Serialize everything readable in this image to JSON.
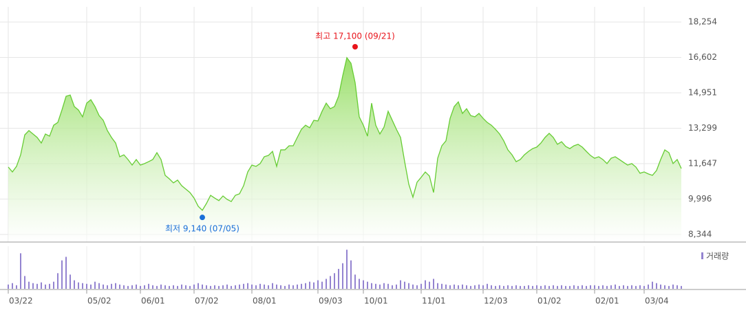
{
  "chart_data": {
    "type": "line",
    "categories": [
      "03/22",
      null,
      null,
      null,
      null,
      null,
      null,
      null,
      null,
      null,
      null,
      null,
      null,
      null,
      null,
      null,
      null,
      null,
      null,
      "05/02",
      null,
      null,
      null,
      null,
      null,
      null,
      null,
      null,
      null,
      null,
      null,
      null,
      "06/01",
      null,
      null,
      null,
      null,
      null,
      null,
      null,
      null,
      null,
      null,
      null,
      null,
      "07/02",
      null,
      null,
      null,
      null,
      null,
      null,
      null,
      null,
      null,
      null,
      null,
      null,
      null,
      "08/01",
      null,
      null,
      null,
      null,
      null,
      null,
      null,
      null,
      null,
      null,
      null,
      null,
      null,
      null,
      null,
      "09/03",
      null,
      null,
      null,
      null,
      null,
      null,
      null,
      null,
      null,
      null,
      "10/01",
      null,
      null,
      null,
      null,
      null,
      null,
      null,
      null,
      null,
      null,
      null,
      null,
      null,
      "11/01",
      null,
      null,
      null,
      null,
      null,
      null,
      null,
      null,
      null,
      null,
      null,
      null,
      null,
      null,
      "12/03",
      null,
      null,
      null,
      null,
      null,
      null,
      null,
      null,
      null,
      null,
      null,
      null,
      "01/02",
      null,
      null,
      null,
      null,
      null,
      null,
      null,
      null,
      null,
      null,
      null,
      null,
      null,
      "02/01",
      null,
      null,
      null,
      null,
      null,
      null,
      null,
      null,
      null,
      null,
      null,
      "03/04",
      null,
      null,
      null,
      null,
      null,
      null,
      null,
      null,
      null
    ],
    "series": [
      {
        "color": "#66cc33",
        "values": [
          11490,
          11260,
          11520,
          12060,
          12990,
          13190,
          13030,
          12870,
          12610,
          13030,
          12930,
          13440,
          13570,
          14150,
          14790,
          14850,
          14310,
          14150,
          13830,
          14470,
          14630,
          14310,
          13890,
          13670,
          13190,
          12870,
          12610,
          11970,
          12060,
          11840,
          11580,
          11840,
          11580,
          11650,
          11740,
          11840,
          12160,
          11840,
          11100,
          10940,
          10750,
          10880,
          10620,
          10460,
          10300,
          10040,
          9660,
          9470,
          9790,
          10170,
          10040,
          9920,
          10140,
          9980,
          9880,
          10170,
          10240,
          10620,
          11260,
          11580,
          11520,
          11650,
          11970,
          12030,
          12220,
          11520,
          12290,
          12290,
          12480,
          12480,
          12870,
          13250,
          13440,
          13320,
          13670,
          13640,
          14090,
          14470,
          14210,
          14310,
          14790,
          15750,
          16590,
          16330,
          15430,
          13830,
          13440,
          12930,
          14470,
          13440,
          13030,
          13350,
          14090,
          13670,
          13250,
          12870,
          11740,
          10690,
          10080,
          10780,
          11010,
          11260,
          11070,
          10300,
          11900,
          12480,
          12710,
          13760,
          14310,
          14530,
          13990,
          14210,
          13890,
          13830,
          13990,
          13760,
          13570,
          13440,
          13250,
          13030,
          12710,
          12290,
          12060,
          11740,
          11840,
          12060,
          12220,
          12350,
          12420,
          12610,
          12870,
          13060,
          12870,
          12550,
          12670,
          12450,
          12350,
          12480,
          12550,
          12420,
          12220,
          12030,
          11900,
          11970,
          11840,
          11650,
          11900,
          11970,
          11840,
          11710,
          11580,
          11650,
          11490,
          11200,
          11260,
          11170,
          11100,
          11330,
          11840,
          12290,
          12160,
          11650,
          11840,
          11420
        ]
      }
    ],
    "volume": {
      "name": "거래량",
      "color": "#9383d0",
      "ylim": [
        0,
        60
      ],
      "values": [
        6,
        8,
        5,
        50,
        18,
        10,
        8,
        7,
        9,
        6,
        7,
        10,
        22,
        40,
        45,
        20,
        12,
        9,
        8,
        7,
        6,
        10,
        8,
        6,
        5,
        7,
        8,
        6,
        5,
        4,
        5,
        6,
        4,
        5,
        7,
        5,
        4,
        6,
        5,
        4,
        5,
        4,
        6,
        5,
        4,
        6,
        8,
        6,
        5,
        4,
        5,
        4,
        5,
        6,
        4,
        5,
        6,
        7,
        8,
        6,
        5,
        7,
        6,
        5,
        8,
        6,
        5,
        4,
        6,
        5,
        6,
        7,
        8,
        10,
        9,
        12,
        10,
        14,
        18,
        22,
        28,
        36,
        55,
        40,
        20,
        14,
        12,
        10,
        8,
        7,
        6,
        8,
        7,
        5,
        6,
        12,
        10,
        8,
        6,
        5,
        7,
        12,
        10,
        14,
        8,
        7,
        6,
        5,
        6,
        5,
        6,
        5,
        4,
        5,
        6,
        5,
        7,
        5,
        4,
        5,
        4,
        5,
        4,
        5,
        4,
        4,
        5,
        4,
        5,
        4,
        5,
        4,
        5,
        4,
        5,
        4,
        4,
        5,
        4,
        5,
        4,
        5,
        5,
        4,
        5,
        4,
        5,
        6,
        4,
        5,
        4,
        5,
        4,
        5,
        4,
        6,
        10,
        8,
        6,
        5,
        4,
        6,
        5,
        4
      ]
    },
    "ylim": [
      7990,
      18960
    ],
    "yticks": [
      {
        "value": 8344,
        "label": "8,344"
      },
      {
        "value": 9996,
        "label": "9,996"
      },
      {
        "value": 11647,
        "label": "11,647"
      },
      {
        "value": 13299,
        "label": "13,299"
      },
      {
        "value": 14951,
        "label": "14,951"
      },
      {
        "value": 16602,
        "label": "16,602"
      },
      {
        "value": 18254,
        "label": "18,254"
      }
    ],
    "grid": true,
    "annotations": [
      {
        "text": "최고 17,100 (09/21)",
        "value": 17100,
        "color": "#e8141b"
      },
      {
        "text": "최저 9,140 (07/05)",
        "value": 9140,
        "color": "#1a6fd8"
      }
    ]
  }
}
